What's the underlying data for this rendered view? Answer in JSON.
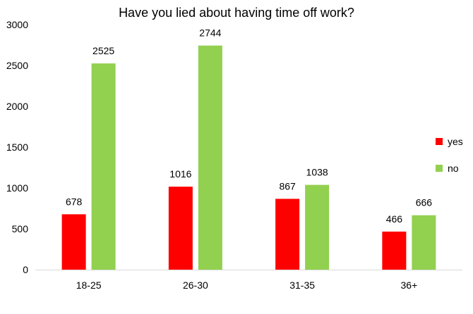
{
  "chart_data": {
    "type": "bar",
    "title": "Have you lied about having time off work?",
    "xlabel": "",
    "ylabel": "",
    "categories": [
      "18-25",
      "26-30",
      "31-35",
      "36+"
    ],
    "series": [
      {
        "name": "yes",
        "values": [
          678,
          1016,
          867,
          466
        ],
        "color": "#ff0000"
      },
      {
        "name": "no",
        "values": [
          2525,
          2744,
          1038,
          666
        ],
        "color": "#92d050"
      }
    ],
    "ylim": [
      0,
      3000
    ],
    "yticks": [
      0,
      500,
      1000,
      1500,
      2000,
      2500,
      3000
    ],
    "grid": false,
    "legend": "right",
    "data_labels": true
  }
}
